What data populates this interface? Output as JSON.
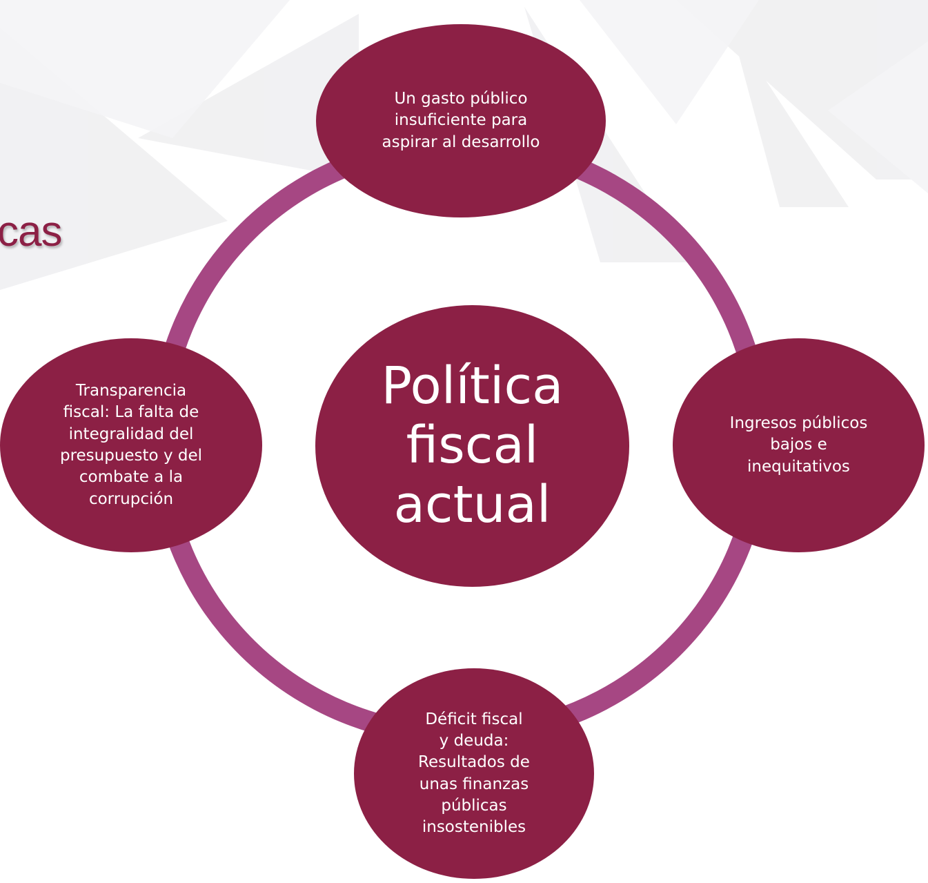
{
  "title_fragment": "cas",
  "diagram": {
    "center": "Política\nfiscal\nactual",
    "top": "Un gasto público\ninsuficiente para\naspirar al desarrollo",
    "right": "Ingresos públicos\nbajos e\ninequitativos",
    "bottom": "Déficit fiscal\ny deuda:\nResultados de\nunas finanzas\npúblicas\ninsostenibles",
    "left": "Transparencia\nfiscal: La falta de\nintegralidad del\npresupuesto y del\ncombate a la\ncorrupción"
  },
  "colors": {
    "node_fill": "#8c2045",
    "ring": "#a64783",
    "title": "#8c2045",
    "node_text": "#ffffff"
  }
}
